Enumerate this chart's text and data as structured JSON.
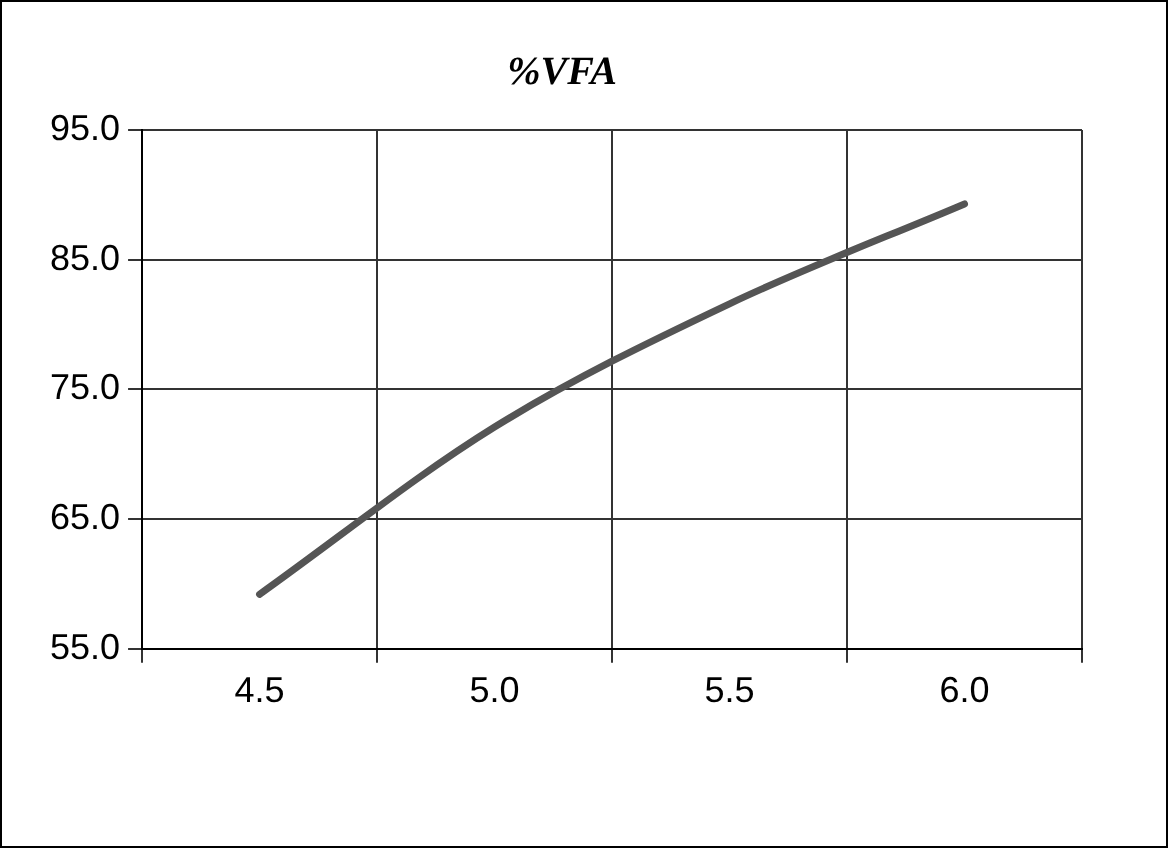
{
  "chart_data": {
    "type": "line",
    "title": "%VFA",
    "categories": [
      "4.5",
      "5.0",
      "5.5",
      "6.0"
    ],
    "series": [
      {
        "color": "#555555",
        "values": [
          59.2,
          72.1,
          81.6,
          89.3
        ]
      }
    ],
    "ylim": [
      55,
      95
    ],
    "yticks": [
      {
        "value": 55,
        "label": "55.0"
      },
      {
        "value": 65,
        "label": "65.0"
      },
      {
        "value": 75,
        "label": "75.0"
      },
      {
        "value": 85,
        "label": "85.0"
      },
      {
        "value": 95,
        "label": "95.0"
      }
    ],
    "grid": true,
    "legend": false,
    "marker": "none",
    "line_style": "solid"
  }
}
